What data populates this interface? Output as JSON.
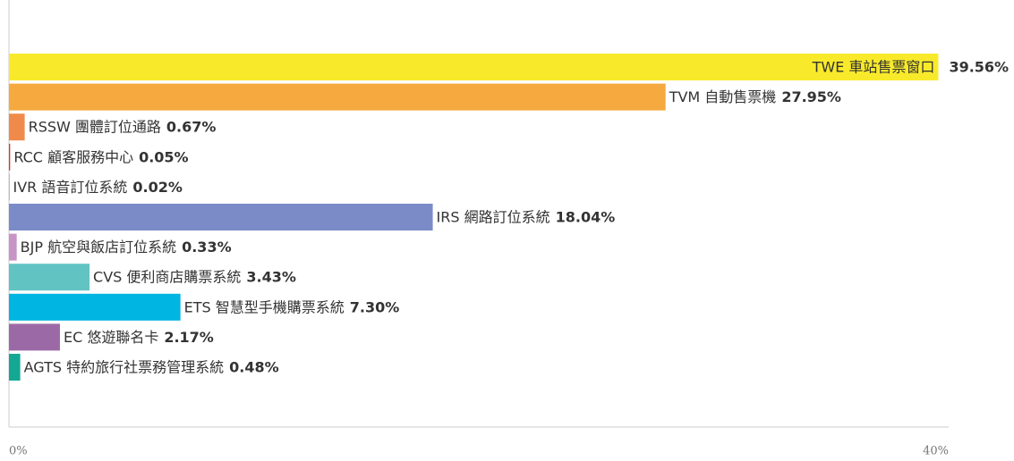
{
  "chart_data": {
    "type": "barh",
    "categories": [
      "TWE 車站售票窗口",
      "TVM 自動售票機",
      "RSSW 團體訂位通路",
      "RCC 顧客服務中心",
      "IVR 語音訂位系統",
      "IRS 網路訂位系統",
      "BJP 航空與飯店訂位系統",
      "CVS 便利商店購票系統",
      "ETS 智慧型手機購票系統",
      "EC 悠遊聯名卡",
      "AGTS 特約旅行社票務管理系統"
    ],
    "values": [
      39.56,
      27.95,
      0.67,
      0.05,
      0.02,
      18.04,
      0.33,
      3.43,
      7.3,
      2.17,
      0.48
    ],
    "value_labels": [
      "39.56%",
      "27.95%",
      "0.67%",
      "0.05%",
      "0.02%",
      "18.04%",
      "0.33%",
      "3.43%",
      "7.30%",
      "2.17%",
      "0.48%"
    ],
    "colors": [
      "#f8ea2a",
      "#f5a93f",
      "#f08a4b",
      "#d9342b",
      "#6a7fc0",
      "#7b8bc8",
      "#c893c5",
      "#62c3c3",
      "#00b5e2",
      "#9c69a7",
      "#14a894"
    ],
    "xlim": [
      0,
      40
    ],
    "xticks": [
      {
        "value": 0,
        "label": "0%"
      },
      {
        "value": 40,
        "label": "40%"
      }
    ]
  }
}
